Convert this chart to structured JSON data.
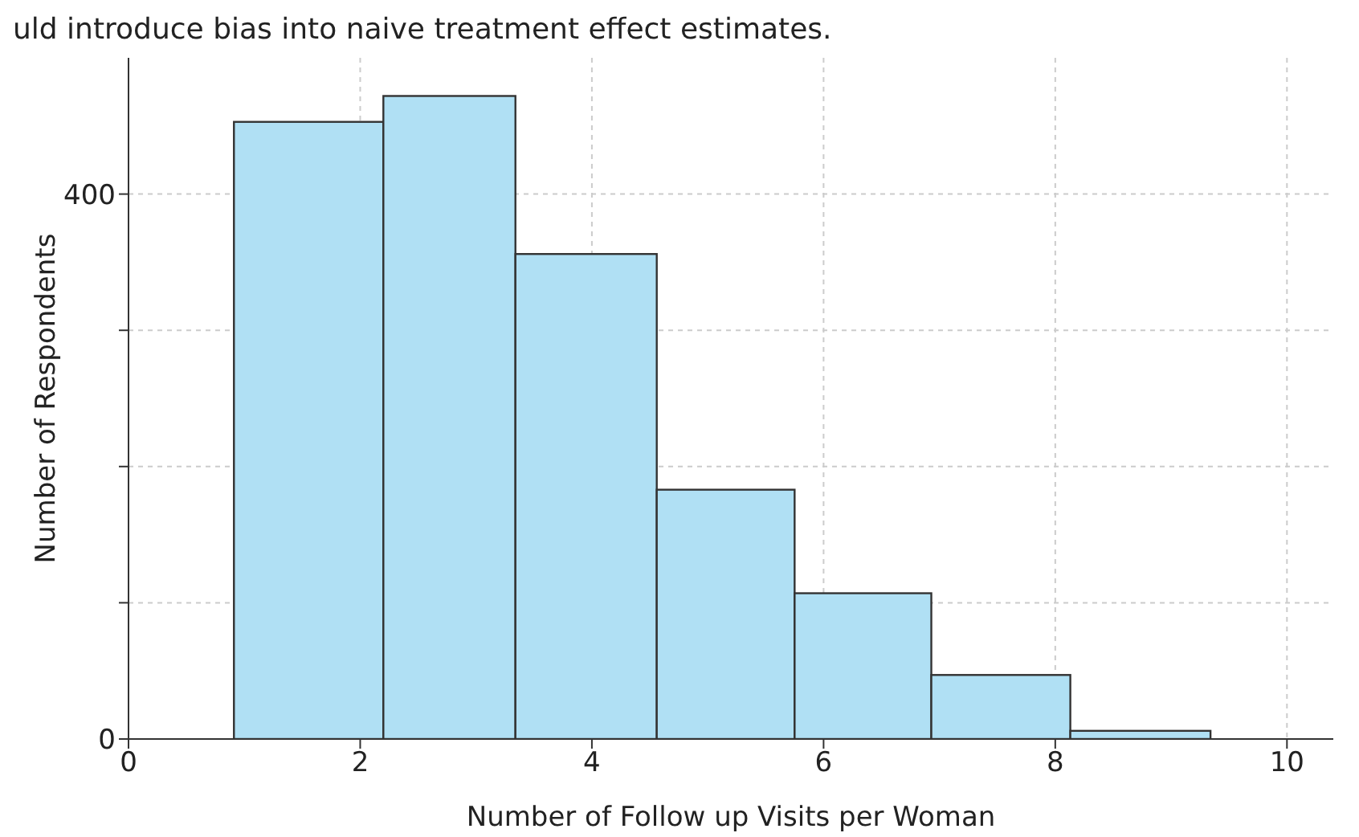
{
  "chart_data": {
    "type": "histogram",
    "annotations": [
      "uld introduce bias into naive treatment effect estimates."
    ],
    "xlabel": "Number of Follow up Visits per Woman",
    "ylabel": "Number of Respondents",
    "bins": [
      0.91,
      2.2,
      3.34,
      4.56,
      5.75,
      6.93,
      8.13,
      9.34
    ],
    "values": [
      453,
      472,
      356,
      183,
      107,
      47,
      6
    ],
    "color": "#b0e0f4",
    "xlim": [
      0,
      10.4
    ],
    "xticks": [
      0,
      2,
      4,
      6,
      8,
      10
    ],
    "ylim": [
      0,
      500
    ],
    "yticks": [
      0,
      {
        "value": 100,
        "label": null
      },
      {
        "value": 200,
        "label": null
      },
      {
        "value": 300,
        "label": null
      },
      400
    ],
    "grid": true
  }
}
